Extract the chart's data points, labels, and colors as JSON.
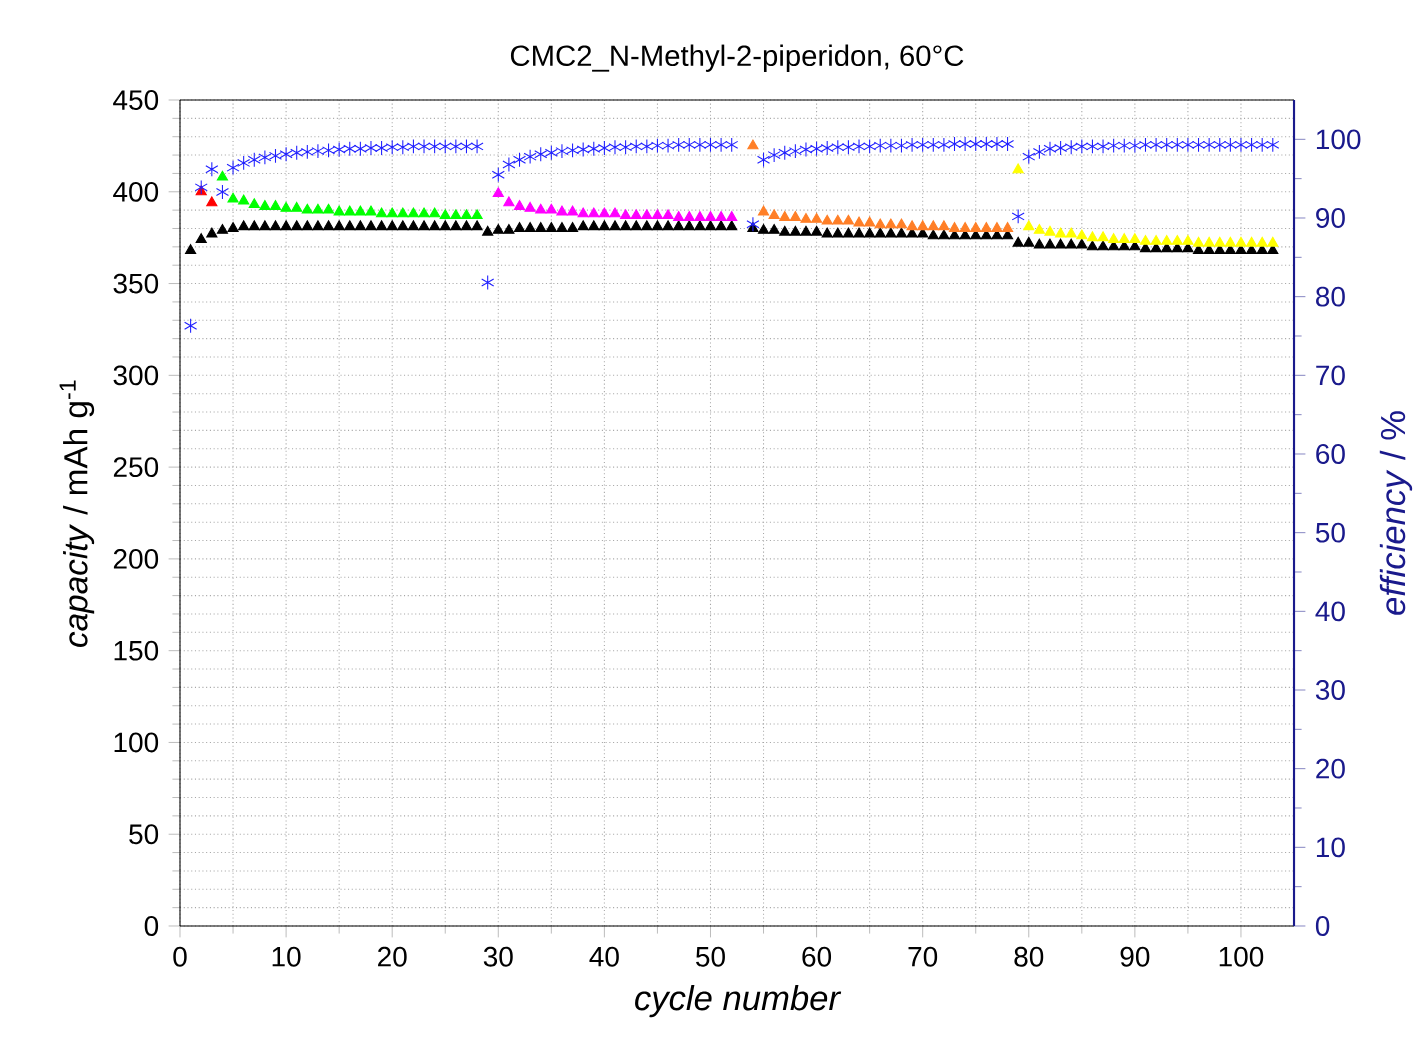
{
  "chart_data": {
    "type": "scatter",
    "title": "CMC2_N-Methyl-2-piperidon, 60°C",
    "xlabel": "cycle number",
    "ylabel": "*capacity* / mAh g$^{-1}$",
    "y2label": "*efficiency* / %",
    "xlim": [
      0,
      105
    ],
    "xticks": [
      0,
      10,
      20,
      30,
      40,
      50,
      60,
      70,
      80,
      90,
      100
    ],
    "ylim": [
      0,
      450
    ],
    "yticks": [
      0,
      50,
      100,
      150,
      200,
      250,
      300,
      350,
      400,
      450
    ],
    "y2lim": [
      0,
      105
    ],
    "y2ticks": [
      0,
      10,
      20,
      30,
      40,
      50,
      60,
      70,
      80,
      90,
      100
    ],
    "grid": true,
    "series": [
      {
        "color": "#000000",
        "marker": "triangle",
        "x": [
          1,
          2,
          3,
          4,
          5,
          6,
          7,
          8,
          9,
          10,
          11,
          12,
          13,
          14,
          15,
          16,
          17,
          18,
          19,
          20,
          21,
          22,
          23,
          24,
          25,
          26,
          27,
          28,
          29,
          30,
          31,
          32,
          33,
          34,
          35,
          36,
          37,
          38,
          39,
          40,
          41,
          42,
          43,
          44,
          45,
          46,
          47,
          48,
          49,
          50,
          51,
          52,
          54,
          55,
          56,
          57,
          58,
          59,
          60,
          61,
          62,
          63,
          64,
          65,
          66,
          67,
          68,
          69,
          70,
          71,
          72,
          73,
          74,
          75,
          76,
          77,
          78,
          79,
          80,
          81,
          82,
          83,
          84,
          85,
          86,
          87,
          88,
          89,
          90,
          91,
          92,
          93,
          94,
          95,
          96,
          97,
          98,
          99,
          100,
          101,
          102,
          103
        ],
        "values": [
          368,
          374,
          377,
          379,
          380,
          381,
          381,
          381,
          381,
          381,
          381,
          381,
          381,
          381,
          381,
          381,
          381,
          381,
          381,
          381,
          381,
          381,
          381,
          381,
          381,
          381,
          381,
          381,
          378,
          379,
          379,
          380,
          380,
          380,
          380,
          380,
          380,
          381,
          381,
          381,
          381,
          381,
          381,
          381,
          381,
          381,
          381,
          381,
          381,
          381,
          381,
          381,
          380,
          379,
          379,
          378,
          378,
          378,
          378,
          377,
          377,
          377,
          377,
          377,
          377,
          377,
          377,
          377,
          377,
          376,
          376,
          376,
          376,
          376,
          376,
          376,
          376,
          372,
          372,
          371,
          371,
          371,
          371,
          371,
          370,
          370,
          370,
          370,
          370,
          369,
          369,
          369,
          369,
          369,
          368,
          368,
          368,
          368,
          368,
          368,
          368,
          368
        ]
      },
      {
        "color": "#ff0000",
        "marker": "triangle",
        "x": [
          2,
          3
        ],
        "values": [
          400,
          394
        ]
      },
      {
        "color": "#00ff00",
        "marker": "triangle",
        "x": [
          4,
          5,
          6,
          7,
          8,
          9,
          10,
          11,
          12,
          13,
          14,
          15,
          16,
          17,
          18,
          19,
          20,
          21,
          22,
          23,
          24,
          25,
          26,
          27,
          28
        ],
        "values": [
          408,
          396,
          395,
          393,
          392,
          392,
          391,
          391,
          390,
          390,
          390,
          389,
          389,
          389,
          389,
          388,
          388,
          388,
          388,
          388,
          388,
          387,
          387,
          387,
          387
        ]
      },
      {
        "color": "#ff00ff",
        "marker": "triangle",
        "x": [
          30,
          31,
          32,
          33,
          34,
          35,
          36,
          37,
          38,
          39,
          40,
          41,
          42,
          43,
          44,
          45,
          46,
          47,
          48,
          49,
          50,
          51,
          52
        ],
        "values": [
          399,
          394,
          392,
          391,
          390,
          390,
          389,
          389,
          388,
          388,
          388,
          388,
          387,
          387,
          387,
          387,
          387,
          386,
          386,
          386,
          386,
          386,
          386
        ]
      },
      {
        "color": "#ff7f27",
        "marker": "triangle",
        "x": [
          54,
          55,
          56,
          57,
          58,
          59,
          60,
          61,
          62,
          63,
          64,
          65,
          66,
          67,
          68,
          69,
          70,
          71,
          72,
          73,
          74,
          75,
          76,
          77,
          78
        ],
        "values": [
          425,
          389,
          387,
          386,
          386,
          385,
          385,
          384,
          384,
          384,
          383,
          383,
          382,
          382,
          382,
          381,
          381,
          381,
          381,
          380,
          380,
          380,
          380,
          380,
          380
        ]
      },
      {
        "color": "#ffff00",
        "marker": "triangle",
        "x": [
          79,
          80,
          81,
          82,
          83,
          84,
          85,
          86,
          87,
          88,
          89,
          90,
          91,
          92,
          93,
          94,
          95,
          96,
          97,
          98,
          99,
          100,
          101,
          102,
          103
        ],
        "values": [
          412,
          381,
          379,
          378,
          377,
          377,
          376,
          375,
          375,
          374,
          374,
          374,
          373,
          373,
          373,
          373,
          373,
          372,
          372,
          372,
          372,
          372,
          372,
          372,
          372
        ]
      },
      {
        "color": "#1f1fff",
        "marker": "cross",
        "axis": "y2",
        "x": [
          1,
          2,
          3,
          4,
          5,
          6,
          7,
          8,
          9,
          10,
          11,
          12,
          13,
          14,
          15,
          16,
          17,
          18,
          19,
          20,
          21,
          22,
          23,
          24,
          25,
          26,
          27,
          28,
          29,
          30,
          31,
          32,
          33,
          34,
          35,
          36,
          37,
          38,
          39,
          40,
          41,
          42,
          43,
          44,
          45,
          46,
          47,
          48,
          49,
          50,
          51,
          52,
          54,
          55,
          56,
          57,
          58,
          59,
          60,
          61,
          62,
          63,
          64,
          65,
          66,
          67,
          68,
          69,
          70,
          71,
          72,
          73,
          74,
          75,
          76,
          77,
          78,
          79,
          80,
          81,
          82,
          83,
          84,
          85,
          86,
          87,
          88,
          89,
          90,
          91,
          92,
          93,
          94,
          95,
          96,
          97,
          98,
          99,
          100,
          101,
          102,
          103
        ],
        "values": [
          76.3,
          93.9,
          96.2,
          93.3,
          96.4,
          97,
          97.4,
          97.7,
          97.9,
          98.1,
          98.3,
          98.4,
          98.5,
          98.6,
          98.7,
          98.8,
          98.8,
          98.9,
          98.9,
          99,
          99,
          99.1,
          99.1,
          99.1,
          99.1,
          99.1,
          99.1,
          99.1,
          81.8,
          95.5,
          96.8,
          97.4,
          97.8,
          98.1,
          98.3,
          98.5,
          98.6,
          98.7,
          98.8,
          98.9,
          99,
          99,
          99.1,
          99.1,
          99.2,
          99.2,
          99.3,
          99.3,
          99.3,
          99.3,
          99.3,
          99.3,
          89.2,
          97.4,
          98,
          98.3,
          98.5,
          98.7,
          98.8,
          98.9,
          99,
          99,
          99.1,
          99.1,
          99.2,
          99.2,
          99.2,
          99.3,
          99.3,
          99.3,
          99.3,
          99.4,
          99.4,
          99.4,
          99.4,
          99.4,
          99.4,
          90.2,
          97.8,
          98.4,
          98.8,
          98.9,
          99,
          99.1,
          99.1,
          99.1,
          99.2,
          99.2,
          99.2,
          99.3,
          99.3,
          99.3,
          99.3,
          99.3,
          99.3,
          99.3,
          99.3,
          99.3,
          99.3,
          99.3,
          99.3,
          99.3
        ]
      }
    ]
  }
}
